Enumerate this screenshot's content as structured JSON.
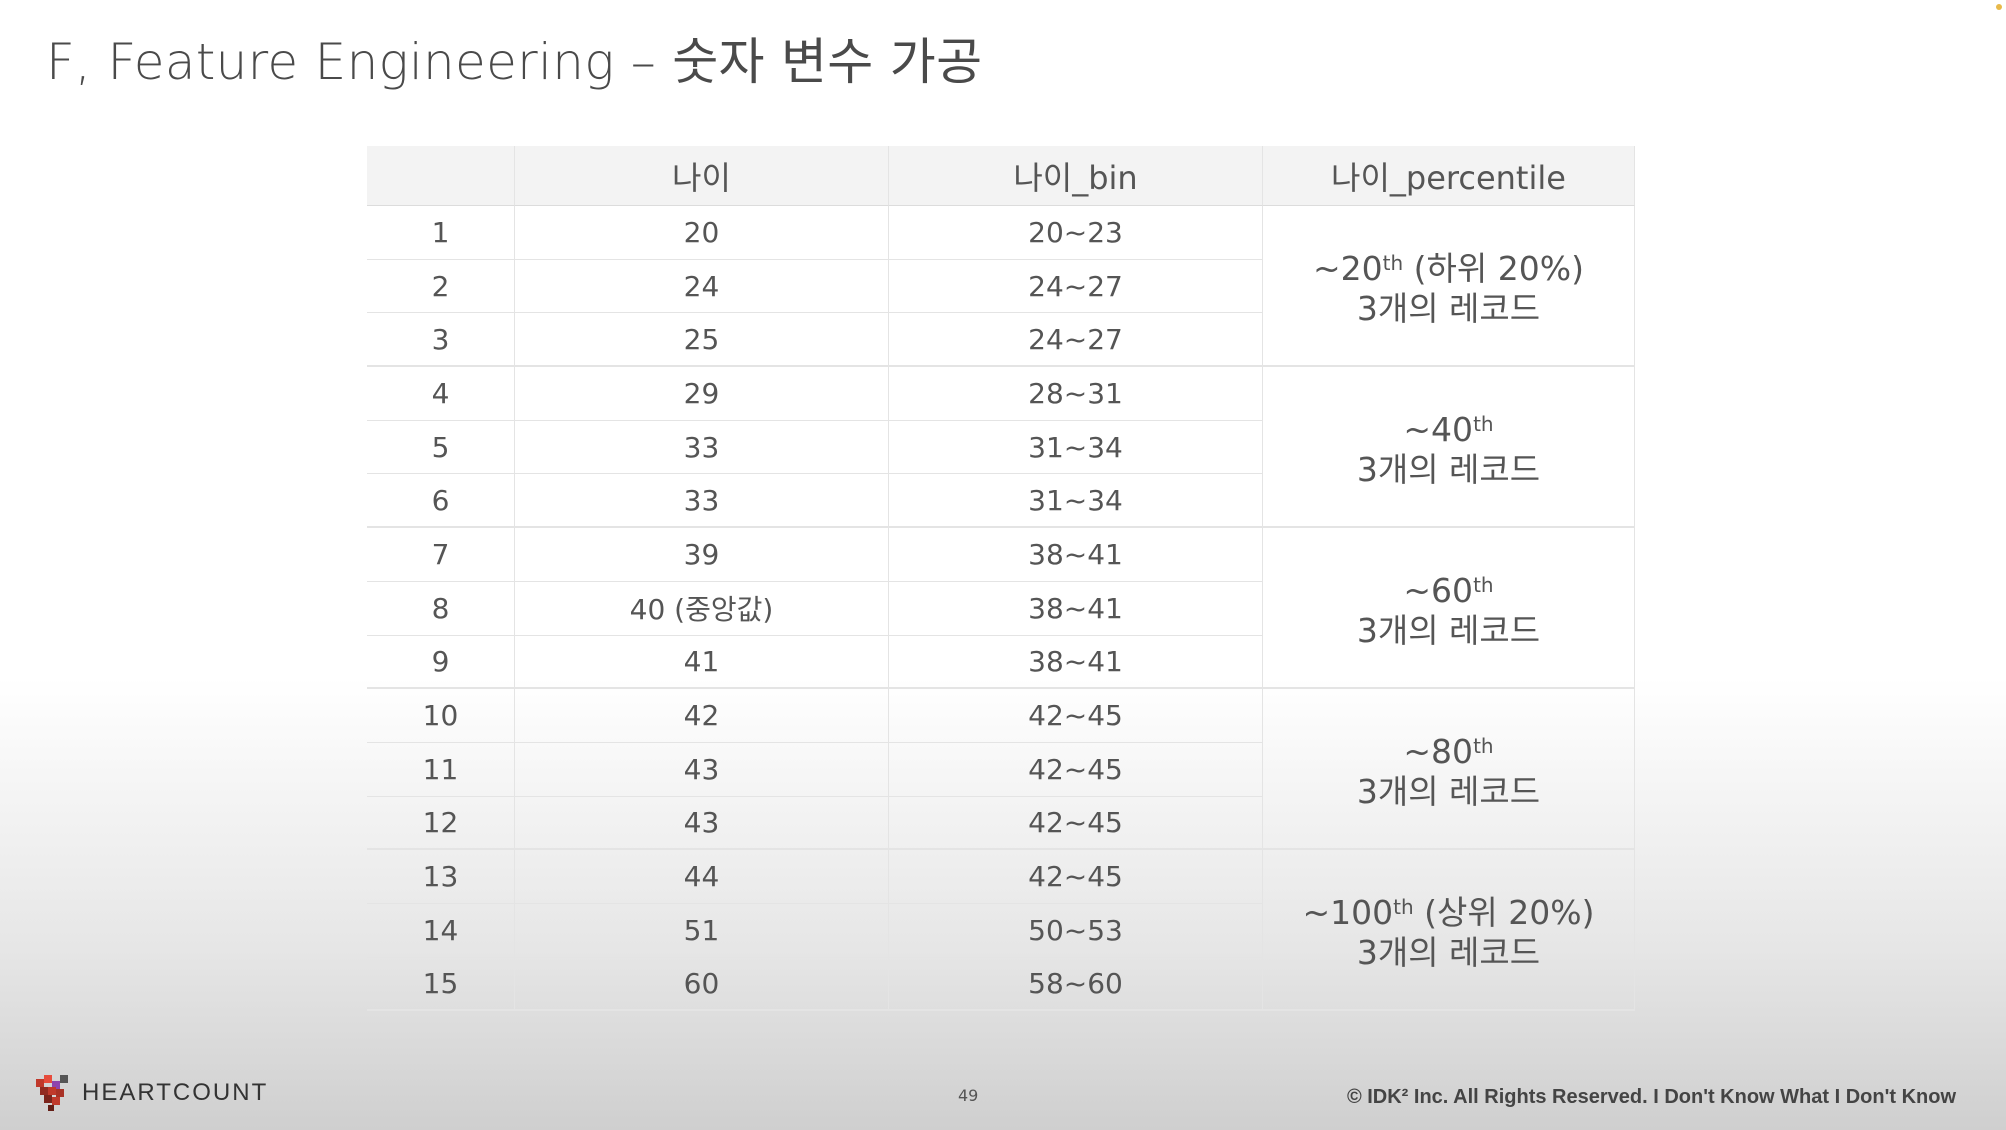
{
  "title": "F, Feature Engineering – 숫자 변수 가공",
  "table": {
    "headers": [
      "",
      "나이",
      "나이_bin",
      "나이_percentile"
    ],
    "rows": [
      {
        "idx": "1",
        "age": "20",
        "bin": "20~23"
      },
      {
        "idx": "2",
        "age": "24",
        "bin": "24~27"
      },
      {
        "idx": "3",
        "age": "25",
        "bin": "24~27"
      },
      {
        "idx": "4",
        "age": "29",
        "bin": "28~31"
      },
      {
        "idx": "5",
        "age": "33",
        "bin": "31~34"
      },
      {
        "idx": "6",
        "age": "33",
        "bin": "31~34"
      },
      {
        "idx": "7",
        "age": "39",
        "bin": "38~41"
      },
      {
        "idx": "8",
        "age": "40 (중앙값)",
        "bin": "38~41"
      },
      {
        "idx": "9",
        "age": "41",
        "bin": "38~41"
      },
      {
        "idx": "10",
        "age": "42",
        "bin": "42~45"
      },
      {
        "idx": "11",
        "age": "43",
        "bin": "42~45"
      },
      {
        "idx": "12",
        "age": "43",
        "bin": "42~45"
      },
      {
        "idx": "13",
        "age": "44",
        "bin": "42~45"
      },
      {
        "idx": "14",
        "age": "51",
        "bin": "50~53"
      },
      {
        "idx": "15",
        "age": "60",
        "bin": "58~60"
      }
    ],
    "percentiles": [
      {
        "pre": "~20",
        "sup": "th",
        "post": " (하위 20%)",
        "count": "3개의 레코드"
      },
      {
        "pre": "~40",
        "sup": "th",
        "post": "",
        "count": "3개의 레코드"
      },
      {
        "pre": "~60",
        "sup": "th",
        "post": "",
        "count": "3개의 레코드"
      },
      {
        "pre": "~80",
        "sup": "th",
        "post": "",
        "count": "3개의 레코드"
      },
      {
        "pre": "~100",
        "sup": "th",
        "post": " (상위 20%)",
        "count": "3개의 레코드"
      }
    ]
  },
  "footer": {
    "logo_text": "HEARTCOUNT",
    "page_number": "49",
    "copyright": "© IDK² Inc. All Rights Reserved.  I Don't Know What I Don't Know"
  }
}
